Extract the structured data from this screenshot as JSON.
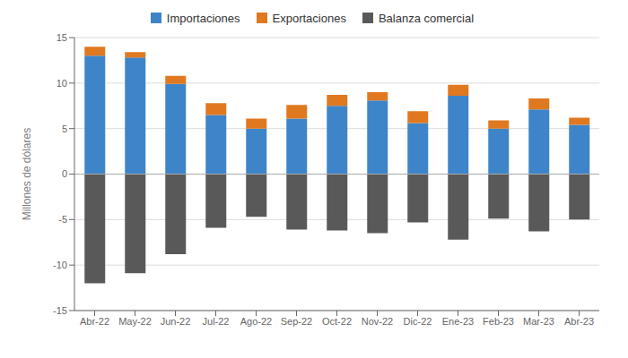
{
  "chart_data": {
    "type": "bar",
    "ylabel": "Millones de dólares",
    "categories": [
      "Abr-22",
      "May-22",
      "Jun-22",
      "Jul-22",
      "Ago-22",
      "Sep-22",
      "Oct-22",
      "Nov-22",
      "Dic-22",
      "Ene-23",
      "Feb-23",
      "Mar-23",
      "Abr-23"
    ],
    "series": [
      {
        "name": "Importaciones",
        "color": "#3d85c8",
        "values": [
          13.0,
          12.8,
          9.9,
          6.5,
          5.0,
          6.1,
          7.5,
          8.1,
          5.6,
          8.6,
          5.0,
          7.1,
          5.4
        ]
      },
      {
        "name": "Exportaciones",
        "color": "#e07820",
        "values": [
          1.0,
          0.6,
          0.9,
          1.3,
          1.1,
          1.5,
          1.2,
          0.9,
          1.3,
          1.2,
          0.9,
          1.2,
          0.8
        ]
      },
      {
        "name": "Balanza comercial",
        "color": "#595959",
        "values": [
          -12.0,
          -10.9,
          -8.8,
          -5.9,
          -4.7,
          -6.1,
          -6.2,
          -6.5,
          -5.3,
          -7.2,
          -4.9,
          -6.3,
          -5.0
        ]
      }
    ],
    "ylim": [
      -15,
      15
    ],
    "yticks": [
      -15,
      -10,
      -5,
      0,
      5,
      10,
      15
    ],
    "stacked": true,
    "grid": true,
    "legend": "top"
  }
}
